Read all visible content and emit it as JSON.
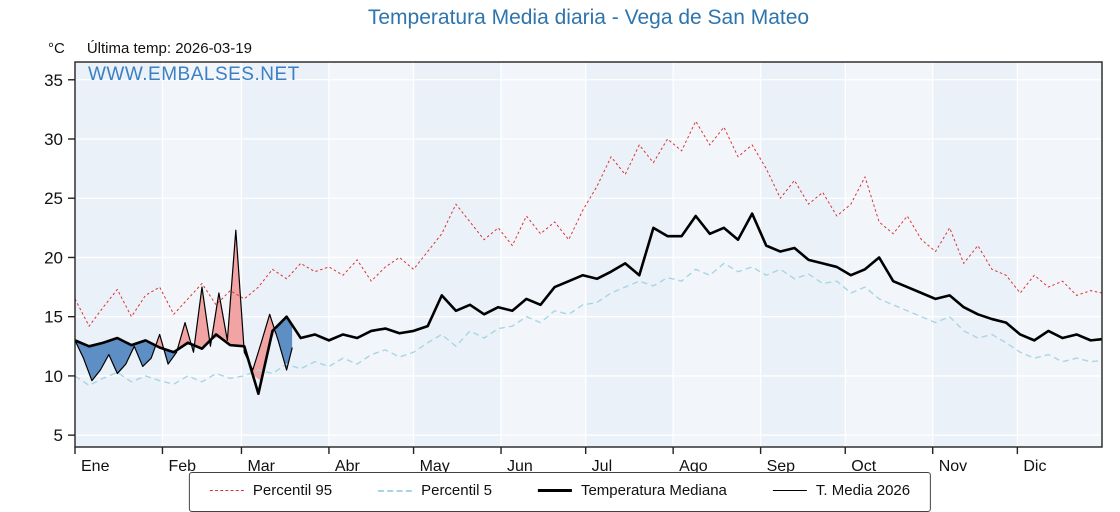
{
  "title": "Temperatura Media diaria - Vega de San Mateo",
  "header": {
    "unit_label": "°C",
    "last_temp_label": "Última temp: 2026-03-19"
  },
  "watermark": "WWW.EMBALSES.NET",
  "colors": {
    "title": "#2e74ad",
    "watermark": "#3b80c4",
    "plot_band_a": "#ebf1f8",
    "plot_band_b": "#f2f6fa",
    "gridline": "#ffffff",
    "axis": "#222222",
    "fill_above_median": "#f2a3a3",
    "fill_below_median": "#5e8fc4"
  },
  "chart_data": {
    "type": "line",
    "title": "Temperatura Media diaria - Vega de San Mateo",
    "xlabel": "",
    "ylabel": "°C",
    "ylim": [
      4,
      36.5
    ],
    "yticks": [
      5,
      10,
      15,
      20,
      25,
      30,
      35
    ],
    "grid": true,
    "legend_position": "bottom",
    "months": [
      {
        "label": "Ene",
        "start_day": 1
      },
      {
        "label": "Feb",
        "start_day": 32
      },
      {
        "label": "Mar",
        "start_day": 60
      },
      {
        "label": "Abr",
        "start_day": 91
      },
      {
        "label": "May",
        "start_day": 121
      },
      {
        "label": "Jun",
        "start_day": 152
      },
      {
        "label": "Jul",
        "start_day": 182
      },
      {
        "label": "Ago",
        "start_day": 213
      },
      {
        "label": "Sep",
        "start_day": 244
      },
      {
        "label": "Oct",
        "start_day": 274
      },
      {
        "label": "Nov",
        "start_day": 305
      },
      {
        "label": "Dic",
        "start_day": 335
      }
    ],
    "x_unit": "day_of_year",
    "x_days": [
      1,
      6,
      11,
      16,
      21,
      26,
      31,
      36,
      41,
      46,
      51,
      56,
      61,
      66,
      71,
      76,
      81,
      86,
      91,
      96,
      101,
      106,
      111,
      116,
      121,
      126,
      131,
      136,
      141,
      146,
      151,
      156,
      161,
      166,
      171,
      176,
      181,
      186,
      191,
      196,
      201,
      206,
      211,
      216,
      221,
      226,
      231,
      236,
      241,
      246,
      251,
      256,
      261,
      266,
      271,
      276,
      281,
      286,
      291,
      296,
      301,
      306,
      311,
      316,
      321,
      326,
      331,
      336,
      341,
      346,
      351,
      356,
      361,
      365
    ],
    "series": [
      {
        "name": "Percentil 95",
        "color": "#dd3333",
        "style": "dashed",
        "dash": "2.5 2.5",
        "width": 1,
        "values": [
          16.5,
          14.2,
          15.8,
          17.3,
          15.0,
          16.8,
          17.5,
          15.2,
          16.5,
          17.8,
          16.0,
          17.2,
          16.5,
          17.5,
          19.0,
          18.2,
          19.5,
          18.8,
          19.2,
          18.5,
          19.8,
          18.0,
          19.2,
          20.0,
          19.0,
          20.5,
          22.0,
          24.5,
          23.0,
          21.5,
          22.5,
          21.0,
          23.5,
          22.0,
          23.0,
          21.5,
          24.0,
          26.0,
          28.5,
          27.0,
          29.5,
          28.0,
          30.0,
          29.0,
          31.5,
          29.5,
          31.0,
          28.5,
          29.5,
          27.5,
          25.0,
          26.5,
          24.5,
          25.5,
          23.5,
          24.5,
          26.8,
          23.0,
          22.0,
          23.5,
          21.5,
          20.5,
          22.5,
          19.5,
          21.0,
          19.0,
          18.5,
          17.0,
          18.5,
          17.5,
          18.0,
          16.8,
          17.2,
          17.0
        ]
      },
      {
        "name": "Percentil 5",
        "color": "#a8d5e5",
        "style": "dashed",
        "dash": "6 4",
        "width": 1.4,
        "values": [
          10.0,
          9.2,
          9.8,
          10.3,
          9.5,
          10.0,
          9.6,
          9.3,
          10.0,
          9.5,
          10.2,
          9.8,
          10.0,
          10.5,
          10.2,
          11.0,
          10.6,
          11.2,
          10.8,
          11.5,
          11.0,
          11.8,
          12.2,
          11.6,
          12.0,
          12.8,
          13.5,
          12.5,
          13.8,
          13.2,
          14.0,
          14.2,
          15.0,
          14.5,
          15.5,
          15.2,
          16.0,
          16.2,
          17.0,
          17.5,
          18.0,
          17.6,
          18.3,
          18.0,
          19.0,
          18.5,
          19.5,
          18.8,
          19.2,
          18.5,
          19.0,
          18.2,
          18.6,
          17.8,
          18.0,
          17.0,
          17.5,
          16.5,
          16.0,
          15.5,
          15.0,
          14.5,
          15.0,
          13.8,
          13.2,
          13.5,
          12.8,
          12.0,
          11.5,
          11.8,
          11.2,
          11.5,
          11.2,
          11.3
        ]
      },
      {
        "name": "Temperatura Mediana",
        "color": "#000000",
        "style": "solid",
        "dash": "",
        "width": 2.6,
        "values": [
          13.0,
          12.5,
          12.8,
          13.2,
          12.6,
          13.0,
          12.4,
          12.0,
          12.8,
          12.3,
          13.5,
          12.6,
          12.5,
          8.5,
          13.8,
          15.0,
          13.2,
          13.5,
          13.0,
          13.5,
          13.2,
          13.8,
          14.0,
          13.6,
          13.8,
          14.2,
          16.8,
          15.5,
          16.0,
          15.2,
          15.8,
          15.5,
          16.5,
          16.0,
          17.5,
          18.0,
          18.5,
          18.2,
          18.8,
          19.5,
          18.5,
          22.5,
          21.8,
          21.8,
          23.5,
          22.0,
          22.5,
          21.5,
          23.7,
          21.0,
          20.5,
          20.8,
          19.8,
          19.5,
          19.2,
          18.5,
          19.0,
          20.0,
          18.0,
          17.5,
          17.0,
          16.5,
          16.8,
          15.8,
          15.2,
          14.8,
          14.5,
          13.5,
          13.0,
          13.8,
          13.2,
          13.5,
          13.0,
          13.1
        ]
      },
      {
        "name": "T. Media 2026",
        "color": "#000000",
        "style": "solid",
        "dash": "",
        "width": 1.2,
        "x": [
          1,
          4,
          7,
          10,
          13,
          16,
          19,
          22,
          25,
          28,
          31,
          34,
          37,
          40,
          43,
          46,
          49,
          52,
          55,
          58,
          61,
          64,
          67,
          70,
          73,
          76,
          78
        ],
        "values": [
          13.0,
          11.5,
          9.6,
          10.5,
          11.8,
          10.2,
          11.0,
          12.5,
          10.8,
          11.5,
          13.5,
          11.0,
          12.0,
          14.5,
          12.0,
          17.5,
          12.5,
          17.0,
          13.0,
          22.3,
          12.0,
          10.5,
          12.8,
          15.2,
          13.0,
          10.5,
          12.4
        ]
      }
    ],
    "fills": {
      "description": "Area between 'T. Media 2026' and 'Temperatura Mediana'; red where 2026 above median, blue where below",
      "above_color": "#f2a3a3",
      "below_color": "#5e8fc4"
    }
  },
  "legend": {
    "items": [
      {
        "label": "Percentil 95"
      },
      {
        "label": "Percentil 5"
      },
      {
        "label": "Temperatura Mediana"
      },
      {
        "label": "T. Media 2026"
      }
    ]
  }
}
